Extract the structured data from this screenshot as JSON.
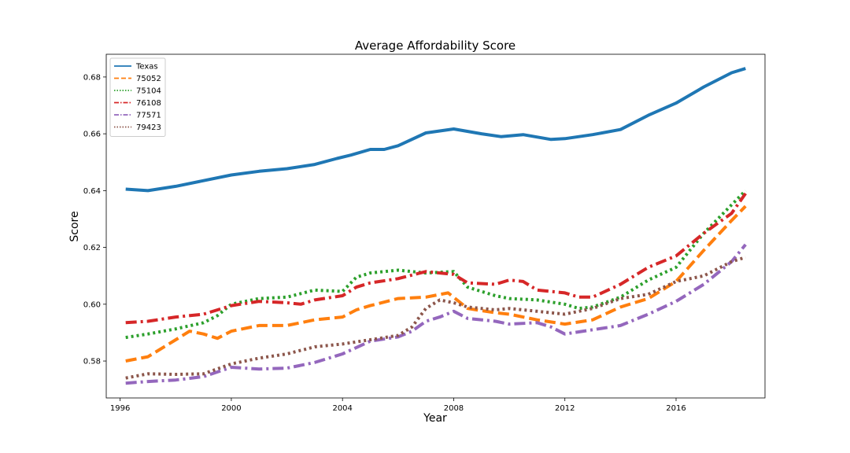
{
  "chart_data": {
    "type": "line",
    "title": "Average Affordability Score",
    "xlabel": "Year",
    "ylabel": "Score",
    "xlim": [
      1995.5,
      2019.2
    ],
    "ylim": [
      0.567,
      0.688
    ],
    "xticks": [
      1996,
      2000,
      2004,
      2008,
      2012,
      2016
    ],
    "yticks": [
      0.58,
      0.6,
      0.62,
      0.64,
      0.66,
      0.68
    ],
    "xtick_labels": [
      "1996",
      "2000",
      "2004",
      "2008",
      "2012",
      "2016"
    ],
    "ytick_labels": [
      "0.58",
      "0.60",
      "0.62",
      "0.64",
      "0.66",
      "0.68"
    ],
    "grid": false,
    "legend_position": "top-left",
    "series": [
      {
        "name": "Texas",
        "color": "#1f77b4",
        "style": "solid",
        "x": [
          1996.2,
          1997,
          1998,
          1999,
          2000,
          2001,
          2002,
          2003,
          2003.8,
          2004.3,
          2005,
          2005.5,
          2006,
          2007,
          2008,
          2009,
          2009.7,
          2010.5,
          2011.5,
          2012,
          2013,
          2014,
          2015,
          2016,
          2017,
          2018,
          2018.5
        ],
        "y": [
          0.6405,
          0.64,
          0.6415,
          0.6435,
          0.6455,
          0.6468,
          0.6477,
          0.6492,
          0.6513,
          0.6525,
          0.6545,
          0.6545,
          0.6558,
          0.6603,
          0.6617,
          0.66,
          0.659,
          0.6597,
          0.658,
          0.6583,
          0.6597,
          0.6615,
          0.6665,
          0.6708,
          0.6765,
          0.6815,
          0.683
        ]
      },
      {
        "name": "75052",
        "color": "#ff7f0e",
        "style": "dashed",
        "x": [
          1996.2,
          1997,
          1998,
          1998.5,
          1999,
          1999.5,
          2000,
          2001,
          2002,
          2003,
          2004,
          2004.5,
          2005,
          2006,
          2007,
          2007.8,
          2008.5,
          2009.5,
          2010,
          2011,
          2012,
          2013,
          2014,
          2015,
          2016,
          2017,
          2018,
          2018.5
        ],
        "y": [
          0.58,
          0.5815,
          0.5875,
          0.5905,
          0.5895,
          0.588,
          0.5905,
          0.5925,
          0.5925,
          0.5945,
          0.5955,
          0.598,
          0.5995,
          0.602,
          0.6025,
          0.604,
          0.5985,
          0.597,
          0.5965,
          0.5945,
          0.593,
          0.5945,
          0.599,
          0.602,
          0.608,
          0.619,
          0.6295,
          0.6345
        ]
      },
      {
        "name": "75104",
        "color": "#2ca02c",
        "style": "dotted",
        "x": [
          1996.2,
          1997,
          1998,
          1999,
          1999.5,
          2000,
          2001,
          2002,
          2003,
          2004,
          2004.5,
          2005,
          2006,
          2007,
          2008,
          2008.5,
          2009.5,
          2010,
          2011,
          2012,
          2012.5,
          2013,
          2014,
          2015,
          2016,
          2017,
          2018,
          2018.5
        ],
        "y": [
          0.5883,
          0.5895,
          0.5913,
          0.5935,
          0.596,
          0.6,
          0.602,
          0.6025,
          0.605,
          0.6045,
          0.6095,
          0.611,
          0.612,
          0.611,
          0.6115,
          0.606,
          0.603,
          0.602,
          0.6015,
          0.6,
          0.5985,
          0.599,
          0.6025,
          0.6085,
          0.613,
          0.625,
          0.635,
          0.64
        ]
      },
      {
        "name": "76108",
        "color": "#d62728",
        "style": "dashdot",
        "x": [
          1996.2,
          1997,
          1998,
          1999,
          2000,
          2001,
          2002,
          2002.5,
          2003,
          2004,
          2004.5,
          2005,
          2006,
          2007,
          2008,
          2008.5,
          2009.5,
          2010,
          2010.5,
          2011,
          2012,
          2012.5,
          2013,
          2014,
          2015,
          2016,
          2017,
          2018,
          2018.5
        ],
        "y": [
          0.5935,
          0.594,
          0.5955,
          0.5965,
          0.5995,
          0.601,
          0.6005,
          0.6,
          0.6015,
          0.603,
          0.606,
          0.6075,
          0.609,
          0.6115,
          0.6105,
          0.6075,
          0.607,
          0.6085,
          0.608,
          0.605,
          0.604,
          0.6025,
          0.6025,
          0.607,
          0.613,
          0.617,
          0.625,
          0.632,
          0.639
        ]
      },
      {
        "name": "77571",
        "color": "#9467bd",
        "style": "dashdot",
        "x": [
          1996.2,
          1997,
          1998,
          1999,
          2000,
          2001,
          2002,
          2003,
          2004,
          2005,
          2006,
          2006.5,
          2007,
          2007.5,
          2008,
          2008.5,
          2009.5,
          2010,
          2011,
          2011.5,
          2012,
          2013,
          2014,
          2015,
          2016,
          2017,
          2018,
          2018.5
        ],
        "y": [
          0.5722,
          0.5728,
          0.5733,
          0.5745,
          0.5778,
          0.5772,
          0.5775,
          0.5795,
          0.5825,
          0.587,
          0.5885,
          0.5905,
          0.594,
          0.5955,
          0.5975,
          0.595,
          0.594,
          0.593,
          0.5935,
          0.592,
          0.5895,
          0.591,
          0.5925,
          0.5965,
          0.601,
          0.607,
          0.615,
          0.621
        ]
      },
      {
        "name": "79423",
        "color": "#8c564b",
        "style": "dotted",
        "x": [
          1996.2,
          1997,
          1998,
          1999,
          2000,
          2001,
          2002,
          2003,
          2004,
          2005,
          2006,
          2006.5,
          2007,
          2007.5,
          2008,
          2008.5,
          2009.5,
          2010,
          2011,
          2012,
          2013,
          2014,
          2015,
          2016,
          2017,
          2018,
          2018.5
        ],
        "y": [
          0.574,
          0.5755,
          0.5753,
          0.5755,
          0.579,
          0.581,
          0.5825,
          0.585,
          0.586,
          0.5875,
          0.589,
          0.592,
          0.5985,
          0.6015,
          0.6005,
          0.599,
          0.598,
          0.5985,
          0.5975,
          0.5965,
          0.5985,
          0.602,
          0.6035,
          0.608,
          0.61,
          0.615,
          0.6165
        ]
      }
    ]
  }
}
